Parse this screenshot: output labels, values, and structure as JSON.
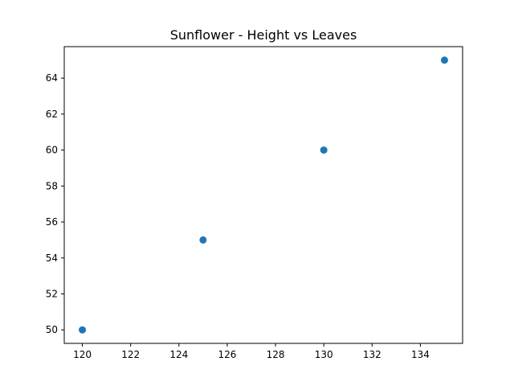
{
  "chart_data": {
    "type": "scatter",
    "title": "Sunflower - Height vs Leaves",
    "xlabel": "",
    "ylabel": "",
    "x": [
      120,
      125,
      130,
      135
    ],
    "y": [
      50,
      55,
      60,
      65
    ],
    "xlim": [
      119.25,
      135.75
    ],
    "ylim": [
      49.25,
      65.75
    ],
    "xticks": [
      120,
      122,
      124,
      126,
      128,
      130,
      132,
      134
    ],
    "yticks": [
      50,
      52,
      54,
      56,
      58,
      60,
      62,
      64
    ],
    "grid": false,
    "legend": "none",
    "marker_color": "#1f77b4"
  }
}
